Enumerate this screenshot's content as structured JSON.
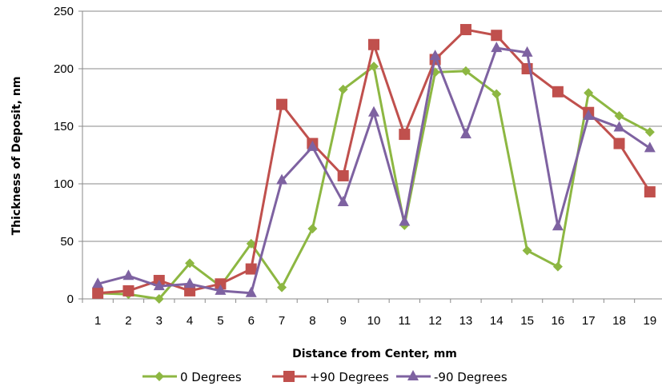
{
  "chart_data": {
    "type": "line",
    "title": "",
    "xlabel": "Distance from Center, mm",
    "ylabel": "Thickness of Deposit, nm",
    "ylim": [
      0,
      250
    ],
    "yticks": [
      0,
      50,
      100,
      150,
      200,
      250
    ],
    "categories": [
      "1",
      "2",
      "3",
      "4",
      "5",
      "6",
      "7",
      "8",
      "9",
      "10",
      "11",
      "12",
      "13",
      "14",
      "15",
      "16",
      "17",
      "18",
      "19"
    ],
    "grid": true,
    "legend_position": "bottom",
    "series": [
      {
        "name": "0 Degrees",
        "color": "#8db742",
        "marker": "diamond",
        "values": [
          5,
          4,
          0,
          31,
          11,
          48,
          10,
          61,
          182,
          202,
          64,
          197,
          198,
          178,
          42,
          28,
          179,
          159,
          145
        ]
      },
      {
        "name": "+90 Degrees",
        "color": "#c0504d",
        "marker": "square",
        "values": [
          5,
          7,
          16,
          7,
          13,
          26,
          169,
          135,
          107,
          221,
          143,
          208,
          234,
          229,
          200,
          180,
          162,
          135,
          93
        ]
      },
      {
        "name": "-90 Degrees",
        "color": "#7e62a1",
        "marker": "triangle",
        "values": [
          13,
          20,
          11,
          13,
          7,
          5,
          103,
          132,
          84,
          162,
          67,
          211,
          143,
          218,
          214,
          63,
          159,
          149,
          131
        ]
      }
    ]
  }
}
